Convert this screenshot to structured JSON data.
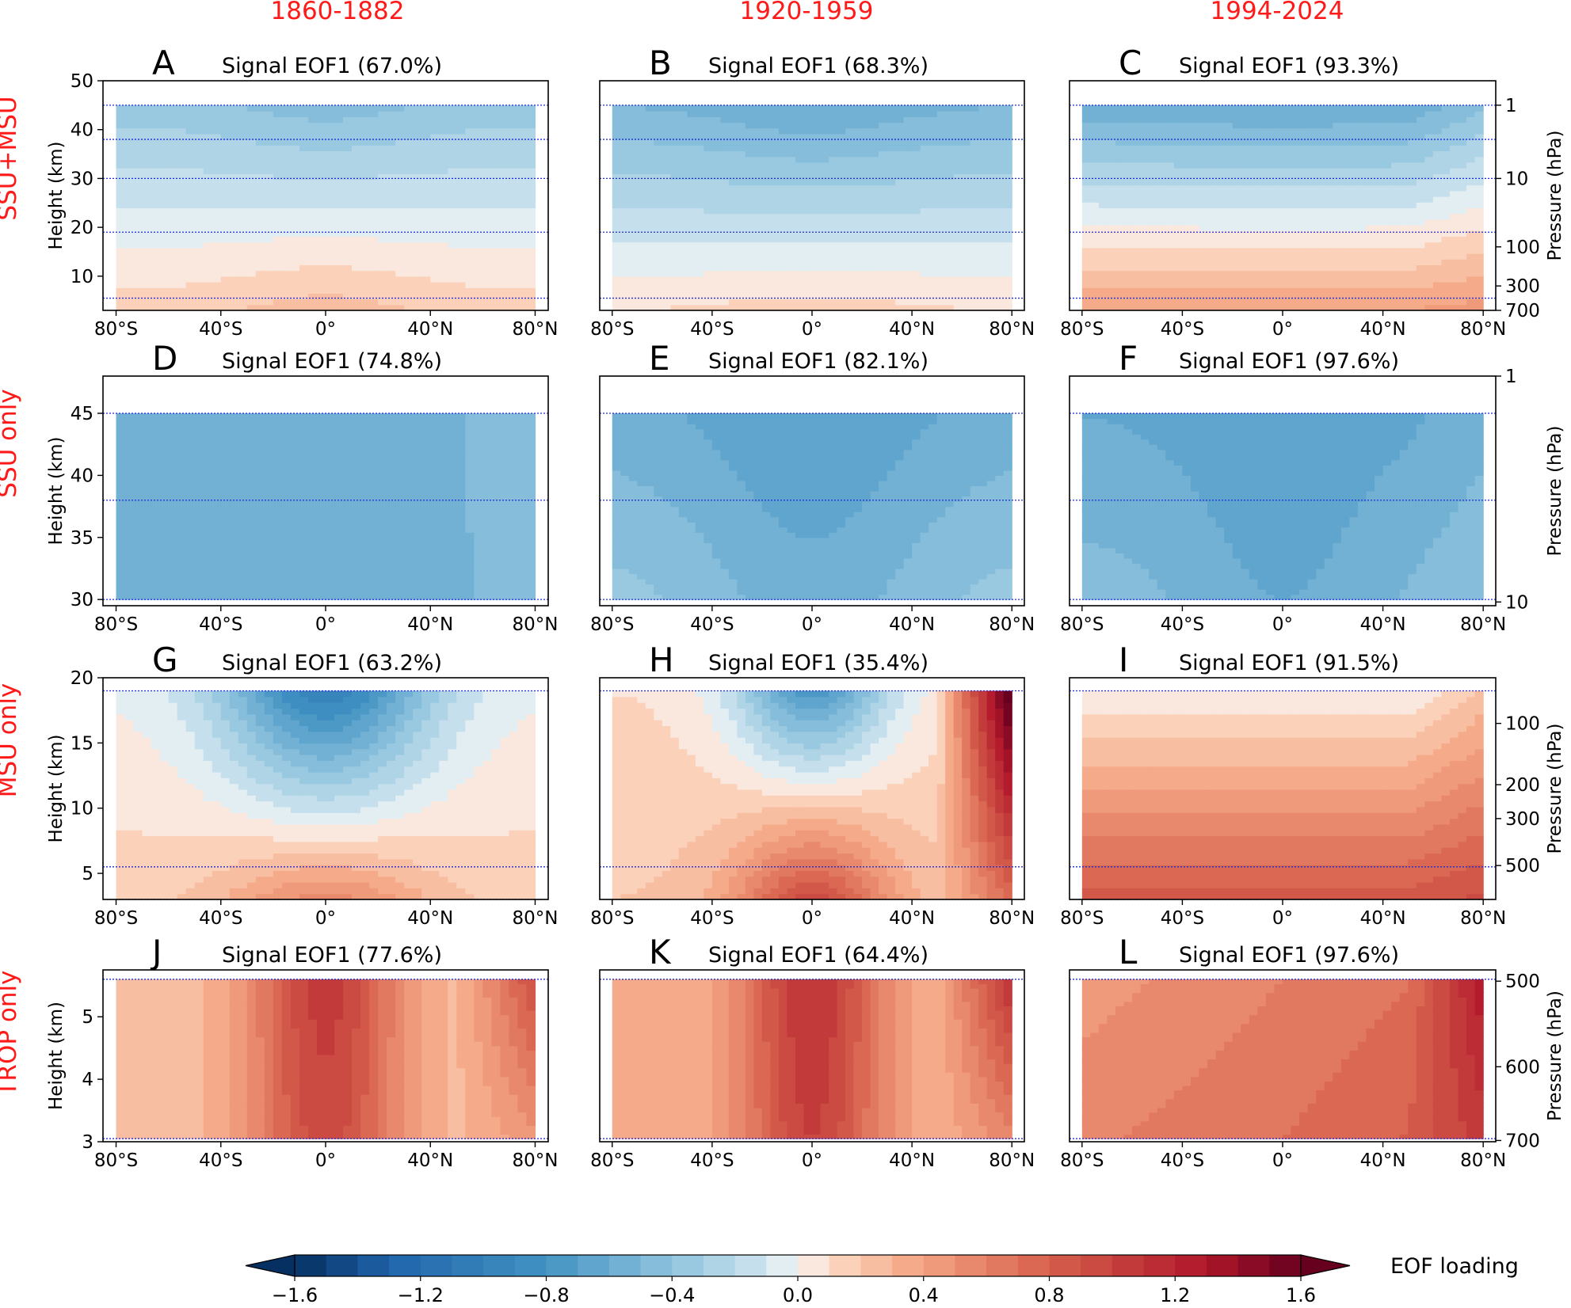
{
  "figure": {
    "column_titles": [
      "1860-1882",
      "1920-1959",
      "1994-2024"
    ],
    "row_titles": [
      "SSU+MSU",
      "SSU only",
      "MSU only",
      "TROP only"
    ]
  },
  "colorbar": {
    "label": "EOF loading",
    "range": [
      -1.6,
      1.6
    ],
    "step": 0.1,
    "ticks": [
      "−1.6",
      "−1.2",
      "−0.8",
      "−0.4",
      "0.0",
      "0.4",
      "0.8",
      "1.2",
      "1.6"
    ],
    "tick_values": [
      -1.6,
      -1.2,
      -0.8,
      -0.4,
      0.0,
      0.4,
      0.8,
      1.2,
      1.6
    ],
    "colormap": "RdBu_r",
    "extend": "both"
  },
  "chart_data": [
    {
      "type": "heatmap",
      "letter": "A",
      "title": "Signal EOF1 (67.0%)",
      "row": 0,
      "col": 0,
      "x": [
        -85,
        85
      ],
      "xticks": [
        "80°S",
        "40°S",
        "0°",
        "40°N",
        "80°N"
      ],
      "xtick_values": [
        -80,
        -40,
        0,
        40,
        80
      ],
      "ylim": [
        3,
        50
      ],
      "data_ylim": [
        3,
        45
      ],
      "yticks": [
        "10",
        "20",
        "30",
        "40",
        "50"
      ],
      "ytick_values": [
        10,
        20,
        30,
        40,
        50
      ],
      "ylabel": "Height (km)",
      "right_ticks": [],
      "right_tick_values": [],
      "right_label": "",
      "layer_lines": [
        5.5,
        19,
        30,
        38,
        45
      ],
      "field": {
        "top": -0.35,
        "bottom": 0.15,
        "eq_top": -0.45,
        "eq_low": 0.25,
        "eq_width": 28,
        "pole_n": 0.0,
        "lon_trend": 0.0,
        "mid_dip": 0.0
      }
    },
    {
      "type": "heatmap",
      "letter": "B",
      "title": "Signal EOF1 (68.3%)",
      "row": 0,
      "col": 1,
      "x": [
        -85,
        85
      ],
      "xticks": [
        "80°S",
        "40°S",
        "0°",
        "40°N",
        "80°N"
      ],
      "xtick_values": [
        -80,
        -40,
        0,
        40,
        80
      ],
      "ylim": [
        3,
        50
      ],
      "data_ylim": [
        3,
        45
      ],
      "yticks": [],
      "ytick_values": [],
      "ylabel": "",
      "right_ticks": [],
      "right_tick_values": [],
      "right_label": "",
      "layer_lines": [
        5.5,
        19,
        30,
        38,
        45
      ],
      "field": {
        "top": -0.5,
        "bottom": 0.1,
        "eq_top": -0.6,
        "eq_low": 0.15,
        "eq_width": 30,
        "pole_n": 0.0,
        "lon_trend": 0.0,
        "mid_dip": 0.0
      }
    },
    {
      "type": "heatmap",
      "letter": "C",
      "title": "Signal EOF1 (93.3%)",
      "row": 0,
      "col": 2,
      "x": [
        -85,
        85
      ],
      "xticks": [
        "80°S",
        "40°S",
        "0°",
        "40°N",
        "80°N"
      ],
      "xtick_values": [
        -80,
        -40,
        0,
        40,
        80
      ],
      "ylim": [
        3,
        50
      ],
      "data_ylim": [
        3,
        45
      ],
      "yticks": [],
      "ytick_values": [],
      "ylabel": "",
      "right_ticks": [
        "1",
        "10",
        "100",
        "300",
        "700"
      ],
      "right_tick_values": [
        45,
        30,
        16,
        8,
        3
      ],
      "right_label": "Pressure (hPa)",
      "layer_lines": [
        5.5,
        19,
        30,
        38,
        45
      ],
      "field": {
        "top": -0.55,
        "bottom": 0.4,
        "eq_top": -0.6,
        "eq_low": 0.4,
        "eq_width": 60,
        "pole_n": 0.1,
        "lon_trend": 0.0,
        "mid_dip": 0.0
      }
    },
    {
      "type": "heatmap",
      "letter": "D",
      "title": "Signal EOF1 (74.8%)",
      "row": 1,
      "col": 0,
      "x": [
        -85,
        85
      ],
      "xticks": [
        "80°S",
        "40°S",
        "0°",
        "40°N",
        "80°N"
      ],
      "xtick_values": [
        -80,
        -40,
        0,
        40,
        80
      ],
      "ylim": [
        29.5,
        48
      ],
      "data_ylim": [
        30,
        45
      ],
      "yticks": [
        "30",
        "35",
        "40",
        "45"
      ],
      "ytick_values": [
        30,
        35,
        40,
        45
      ],
      "ylabel": "Height (km)",
      "right_ticks": [],
      "right_tick_values": [],
      "right_label": "",
      "layer_lines": [
        30,
        38,
        45
      ],
      "field": {
        "top": -0.5,
        "bottom": -0.5,
        "eq_top": -0.55,
        "eq_low": -0.6,
        "eq_width": 25,
        "pole_n": 0.05,
        "lon_trend": 0.0,
        "mid_dip": 0.0
      }
    },
    {
      "type": "heatmap",
      "letter": "E",
      "title": "Signal EOF1 (82.1%)",
      "row": 1,
      "col": 1,
      "x": [
        -85,
        85
      ],
      "xticks": [
        "80°S",
        "40°S",
        "0°",
        "40°N",
        "80°N"
      ],
      "xtick_values": [
        -80,
        -40,
        0,
        40,
        80
      ],
      "ylim": [
        29.5,
        48
      ],
      "data_ylim": [
        30,
        45
      ],
      "yticks": [],
      "ytick_values": [],
      "ylabel": "",
      "right_ticks": [],
      "right_tick_values": [],
      "right_label": "",
      "layer_lines": [
        30,
        38,
        45
      ],
      "field": {
        "top": -0.55,
        "bottom": -0.35,
        "eq_top": -0.7,
        "eq_low": -0.55,
        "eq_width": 35,
        "pole_n": 0.0,
        "lon_trend": 0.0,
        "mid_dip": 0.0
      }
    },
    {
      "type": "heatmap",
      "letter": "F",
      "title": "Signal EOF1 (97.6%)",
      "row": 1,
      "col": 2,
      "x": [
        -85,
        85
      ],
      "xticks": [
        "80°S",
        "40°S",
        "0°",
        "40°N",
        "80°N"
      ],
      "xtick_values": [
        -80,
        -40,
        0,
        40,
        80
      ],
      "ylim": [
        29.5,
        48
      ],
      "data_ylim": [
        30,
        45
      ],
      "yticks": [],
      "ytick_values": [],
      "ylabel": "",
      "right_ticks": [
        "1",
        "10"
      ],
      "right_tick_values": [
        48,
        29.8
      ],
      "right_label": "Pressure (hPa)",
      "layer_lines": [
        30,
        38,
        45
      ],
      "field": {
        "top": -0.6,
        "bottom": -0.45,
        "eq_top": -0.7,
        "eq_low": -0.6,
        "eq_width": 30,
        "pole_n": 0.05,
        "lon_trend": 0.0,
        "mid_dip": 0.0
      }
    },
    {
      "type": "heatmap",
      "letter": "G",
      "title": "Signal EOF1 (63.2%)",
      "row": 2,
      "col": 0,
      "x": [
        -85,
        85
      ],
      "xticks": [
        "80°S",
        "40°S",
        "0°",
        "40°N",
        "80°N"
      ],
      "xtick_values": [
        -80,
        -40,
        0,
        40,
        80
      ],
      "ylim": [
        3,
        20
      ],
      "data_ylim": [
        3,
        19
      ],
      "yticks": [
        "5",
        "10",
        "15",
        "20"
      ],
      "ytick_values": [
        5,
        10,
        15,
        20
      ],
      "ylabel": "Height (km)",
      "right_ticks": [],
      "right_tick_values": [],
      "right_label": "",
      "layer_lines": [
        3,
        5.5,
        19
      ],
      "field": {
        "top": 0.0,
        "bottom": 0.15,
        "eq_top": -1.0,
        "eq_low": 0.55,
        "eq_width": 28,
        "pole_n": 0.0,
        "lon_trend": 0.0,
        "mid_dip": 0.0
      }
    },
    {
      "type": "heatmap",
      "letter": "H",
      "title": "Signal EOF1 (35.4%)",
      "row": 2,
      "col": 1,
      "x": [
        -85,
        85
      ],
      "xticks": [
        "80°S",
        "40°S",
        "0°",
        "40°N",
        "80°N"
      ],
      "xtick_values": [
        -80,
        -40,
        0,
        40,
        80
      ],
      "ylim": [
        3,
        20
      ],
      "data_ylim": [
        3,
        19
      ],
      "yticks": [],
      "ytick_values": [],
      "ylabel": "",
      "right_ticks": [],
      "right_tick_values": [],
      "right_label": "",
      "layer_lines": [
        3,
        5.5,
        19
      ],
      "field": {
        "top": 0.1,
        "bottom": 0.2,
        "eq_top": -0.75,
        "eq_low": 0.95,
        "eq_width": 22,
        "pole_n": 1.1,
        "lon_trend": 0.0,
        "mid_dip": 0.0
      }
    },
    {
      "type": "heatmap",
      "letter": "I",
      "title": "Signal EOF1 (91.5%)",
      "row": 2,
      "col": 2,
      "x": [
        -85,
        85
      ],
      "xticks": [
        "80°S",
        "40°S",
        "0°",
        "40°N",
        "80°N"
      ],
      "xtick_values": [
        -80,
        -40,
        0,
        40,
        80
      ],
      "ylim": [
        3,
        20
      ],
      "data_ylim": [
        3,
        19
      ],
      "yticks": [],
      "ytick_values": [],
      "ylabel": "",
      "right_ticks": [
        "100",
        "200",
        "300",
        "500"
      ],
      "right_tick_values": [
        16.5,
        11.8,
        9.2,
        5.6
      ],
      "right_label": "Pressure (hPa)",
      "layer_lines": [
        3,
        5.5,
        19
      ],
      "field": {
        "top": 0.0,
        "bottom": 0.85,
        "eq_top": 0.0,
        "eq_low": 0.85,
        "eq_width": 60,
        "pole_n": 0.15,
        "lon_trend": 0.0,
        "mid_dip": 0.0
      }
    },
    {
      "type": "heatmap",
      "letter": "J",
      "title": "Signal EOF1 (77.6%)",
      "row": 3,
      "col": 0,
      "x": [
        -85,
        85
      ],
      "xticks": [
        "80°S",
        "40°S",
        "0°",
        "40°N",
        "80°N"
      ],
      "xtick_values": [
        -80,
        -40,
        0,
        40,
        80
      ],
      "ylim": [
        3,
        5.75
      ],
      "data_ylim": [
        3.05,
        5.6
      ],
      "yticks": [
        "3",
        "4",
        "5"
      ],
      "ytick_values": [
        3,
        4,
        5
      ],
      "ylabel": "Height (km)",
      "right_ticks": [],
      "right_tick_values": [],
      "right_label": "",
      "layer_lines": [
        3.05,
        5.6
      ],
      "field": {
        "top": 0.25,
        "bottom": 0.25,
        "eq_top": 1.05,
        "eq_low": 0.95,
        "eq_width": 20,
        "pole_n": 0.45,
        "lon_trend": 0.0,
        "mid_dip": 0.0
      }
    },
    {
      "type": "heatmap",
      "letter": "K",
      "title": "Signal EOF1 (64.4%)",
      "row": 3,
      "col": 1,
      "x": [
        -85,
        85
      ],
      "xticks": [
        "80°S",
        "40°S",
        "0°",
        "40°N",
        "80°N"
      ],
      "xtick_values": [
        -80,
        -40,
        0,
        40,
        80
      ],
      "ylim": [
        3,
        5.75
      ],
      "data_ylim": [
        3.05,
        5.6
      ],
      "yticks": [],
      "ytick_values": [],
      "ylabel": "",
      "right_ticks": [],
      "right_tick_values": [],
      "right_label": "",
      "layer_lines": [
        3.05,
        5.6
      ],
      "field": {
        "top": 0.3,
        "bottom": 0.3,
        "eq_top": 1.1,
        "eq_low": 1.0,
        "eq_width": 20,
        "pole_n": 0.55,
        "lon_trend": 0.0,
        "mid_dip": 0.0
      }
    },
    {
      "type": "heatmap",
      "letter": "L",
      "title": "Signal EOF1 (97.6%)",
      "row": 3,
      "col": 2,
      "x": [
        -85,
        85
      ],
      "xticks": [
        "80°S",
        "40°S",
        "0°",
        "40°N",
        "80°N"
      ],
      "xtick_values": [
        -80,
        -40,
        0,
        40,
        80
      ],
      "ylim": [
        3,
        5.75
      ],
      "data_ylim": [
        3.05,
        5.6
      ],
      "yticks": [],
      "ytick_values": [],
      "ylabel": "",
      "right_ticks": [
        "500",
        "600",
        "700"
      ],
      "right_tick_values": [
        5.57,
        4.2,
        3.02
      ],
      "right_label": "Pressure (hPa)",
      "layer_lines": [
        3.05,
        5.6
      ],
      "field": {
        "top": 0.6,
        "bottom": 0.75,
        "eq_top": 0.6,
        "eq_low": 0.7,
        "eq_width": 60,
        "pole_n": 0.35,
        "lon_trend": 0.15,
        "mid_dip": 0.0
      }
    }
  ]
}
